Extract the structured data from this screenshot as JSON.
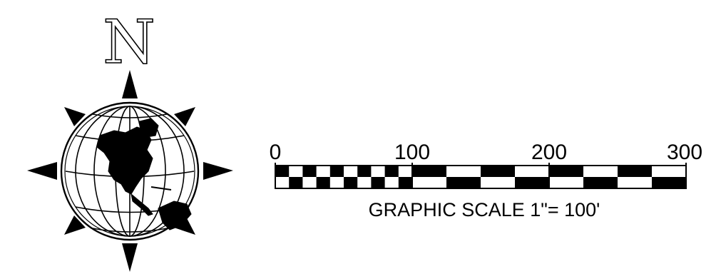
{
  "north_arrow": {
    "letter": "N"
  },
  "scale_bar": {
    "ticks": [
      {
        "value": 0,
        "label": "0"
      },
      {
        "value": 100,
        "label": "100"
      },
      {
        "value": 200,
        "label": "200"
      },
      {
        "value": 300,
        "label": "300"
      }
    ],
    "max_value": 300,
    "caption": "GRAPHIC SCALE 1\"= 100'",
    "fine_segments_first_100": 10,
    "coarse_segments_after_100": 8,
    "colors": {
      "fill": "#000000",
      "background": "#ffffff"
    }
  }
}
